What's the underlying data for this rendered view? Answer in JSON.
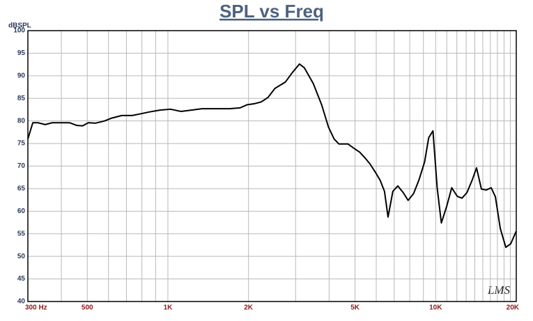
{
  "chart_data": {
    "type": "line",
    "title": "SPL vs Freq",
    "y_label": "dBSPL",
    "watermark": "LMS",
    "x_scale": "log",
    "grid": true,
    "xlim": [
      300,
      20000
    ],
    "ylim": [
      40,
      100
    ],
    "xticks": [
      {
        "value": 300,
        "label": "300 Hz"
      },
      500,
      {
        "value": 1000,
        "label": "1K"
      },
      {
        "value": 2000,
        "label": "2K"
      },
      {
        "value": 5000,
        "label": "5K"
      },
      {
        "value": 10000,
        "label": "10K"
      },
      {
        "value": 20000,
        "label": "20K"
      }
    ],
    "xgrid": [
      400,
      600,
      700,
      800,
      900,
      3000,
      4000,
      6000,
      7000,
      8000,
      9000,
      11000,
      12000,
      13000,
      14000,
      15000,
      16000,
      17000,
      18000,
      19000
    ],
    "yticks": [
      40,
      45,
      50,
      55,
      60,
      65,
      70,
      75,
      80,
      85,
      90,
      95,
      100
    ],
    "series": [
      {
        "name": "SPL",
        "color": "#000000",
        "x": [
          300,
          313,
          327,
          348,
          370,
          430,
          457,
          480,
          505,
          536,
          580,
          615,
          673,
          735,
          780,
          855,
          935,
          1022,
          1120,
          1225,
          1340,
          1510,
          1700,
          1860,
          1980,
          2100,
          2230,
          2365,
          2510,
          2745,
          2915,
          3100,
          3230,
          3490,
          3750,
          3980,
          4175,
          4350,
          4700,
          4990,
          5200,
          5450,
          5680,
          5960,
          6210,
          6440,
          6640,
          6920,
          7220,
          7570,
          7890,
          8270,
          8670,
          9090,
          9420,
          9770,
          10130,
          10500,
          11010,
          11480,
          12040,
          12540,
          13080,
          13710,
          14210,
          14820,
          15460,
          16120,
          16710,
          17430,
          18280,
          19070,
          20000
        ],
        "values": [
          76,
          79.6,
          79.6,
          79.2,
          79.6,
          79.6,
          79,
          78.9,
          79.6,
          79.5,
          80,
          80.6,
          81.2,
          81.2,
          81.5,
          82,
          82.4,
          82.6,
          82.1,
          82.4,
          82.7,
          82.7,
          82.7,
          82.9,
          83.6,
          83.8,
          84.2,
          85.2,
          87.2,
          88.6,
          90.7,
          92.6,
          91.8,
          88.3,
          83.6,
          78.6,
          76,
          74.9,
          74.9,
          73.8,
          73.1,
          71.8,
          70.5,
          68.6,
          66.8,
          64.4,
          58.7,
          64.4,
          65.6,
          64.1,
          62.4,
          63.9,
          67,
          70.9,
          76.3,
          77.8,
          65.2,
          57.4,
          61.2,
          65.2,
          63.3,
          62.9,
          64.1,
          67,
          69.6,
          64.9,
          64.7,
          65.2,
          63.2,
          56.2,
          52,
          52.8,
          55.6
        ]
      }
    ]
  }
}
